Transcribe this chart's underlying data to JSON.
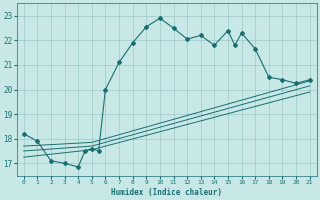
{
  "title": "",
  "xlabel": "Humidex (Indice chaleur)",
  "xlim": [
    -0.5,
    21.5
  ],
  "ylim": [
    16.5,
    23.5
  ],
  "xticks": [
    0,
    1,
    2,
    3,
    4,
    5,
    6,
    7,
    8,
    9,
    10,
    11,
    12,
    13,
    14,
    15,
    16,
    17,
    18,
    19,
    20,
    21
  ],
  "yticks": [
    17,
    18,
    19,
    20,
    21,
    22,
    23
  ],
  "bg_color": "#c8e8e8",
  "line_color": "#1a6e6e",
  "grid_color": "#a0c8c8",
  "font_color": "#1a6e6e",
  "line1_x": [
    0,
    1,
    2,
    3,
    4,
    4.5,
    5,
    5.5,
    6,
    7,
    8,
    9,
    10,
    11,
    12,
    13,
    14,
    15,
    15.5,
    16,
    17,
    18,
    19,
    20,
    21
  ],
  "line1_y": [
    18.2,
    17.9,
    17.1,
    17.0,
    16.85,
    17.5,
    17.6,
    17.5,
    20.0,
    21.1,
    21.9,
    22.55,
    22.9,
    22.5,
    22.05,
    22.2,
    21.8,
    22.4,
    21.8,
    22.3,
    21.65,
    20.5,
    20.4,
    20.25,
    20.4
  ],
  "line2_x": [
    0,
    5,
    21
  ],
  "line2_y": [
    17.7,
    17.85,
    20.35
  ],
  "line3_x": [
    0,
    5,
    21
  ],
  "line3_y": [
    17.5,
    17.7,
    20.15
  ],
  "line4_x": [
    0,
    5,
    21
  ],
  "line4_y": [
    17.25,
    17.55,
    19.9
  ]
}
